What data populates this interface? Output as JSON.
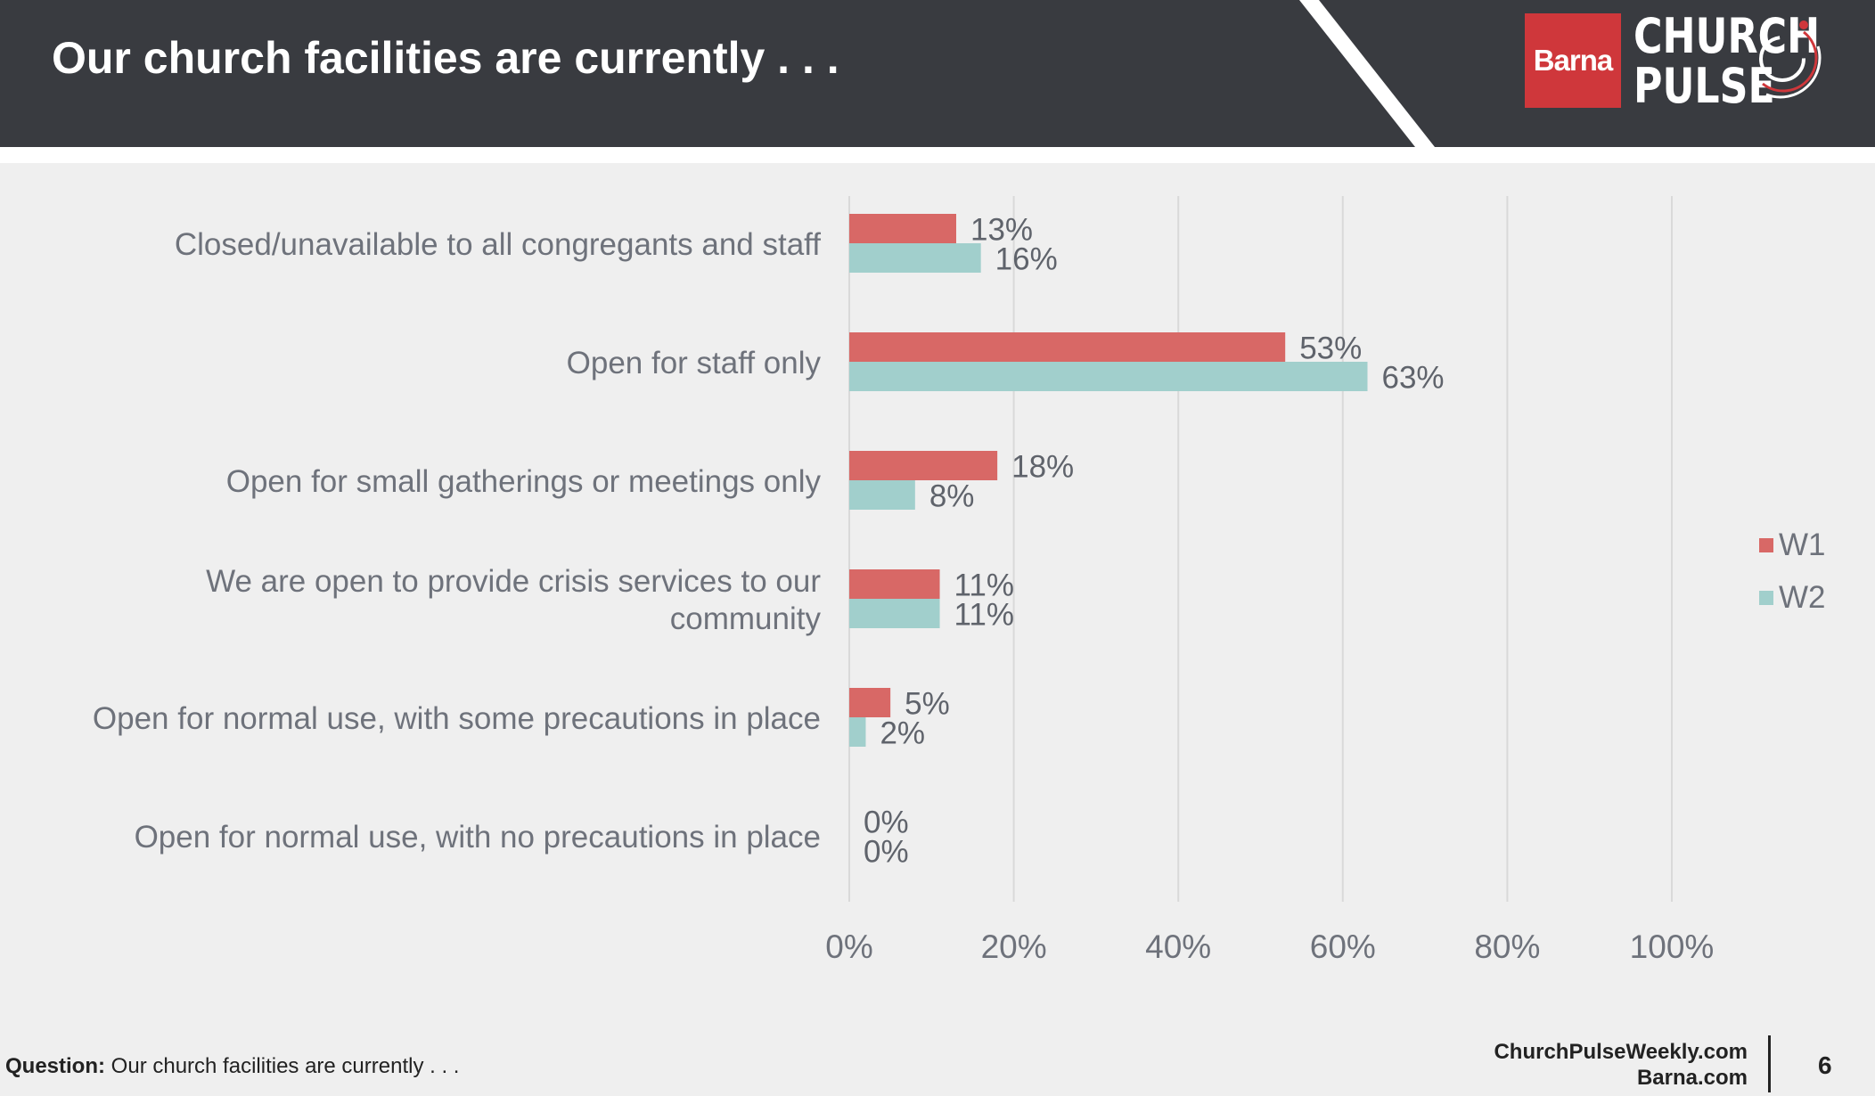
{
  "header": {
    "title": "Our church facilities are currently . . .",
    "logo": {
      "brand": "Barna",
      "word_line_1": "CHURCH",
      "word_line_2": "PULSE",
      "brand_color": "#cf373b",
      "mark_icon": "pulse-circle-icon"
    }
  },
  "colors": {
    "header_bg": "#393b40",
    "w1": "#d86866",
    "w2": "#a1cfcc",
    "text": "#6e727b"
  },
  "chart_data": {
    "type": "bar",
    "orientation": "horizontal",
    "categories": [
      "Closed/unavailable to all congregants and staff",
      "Open for staff only",
      "Open for small gatherings or meetings only",
      "We are open to provide crisis services to our community",
      "Open for normal use, with some precautions in place",
      "Open for normal use, with no precautions in place"
    ],
    "category_lines": [
      [
        "Closed/unavailable to all congregants and staff"
      ],
      [
        "Open for staff only"
      ],
      [
        "Open for small gatherings or meetings only"
      ],
      [
        "We are open to provide crisis services to our",
        "community"
      ],
      [
        "Open for normal use, with some precautions in place"
      ],
      [
        "Open for normal use, with no precautions in place"
      ]
    ],
    "series": [
      {
        "name": "W1",
        "values": [
          13,
          53,
          18,
          11,
          5,
          0
        ],
        "labels": [
          "13%",
          "53%",
          "18%",
          "11%",
          "5%",
          "0%"
        ]
      },
      {
        "name": "W2",
        "values": [
          16,
          63,
          8,
          11,
          2,
          0
        ],
        "labels": [
          "16%",
          "63%",
          "8%",
          "11%",
          "2%",
          "0%"
        ]
      }
    ],
    "xlim": [
      0,
      100
    ],
    "xticks": [
      "0%",
      "20%",
      "40%",
      "60%",
      "80%",
      "100%"
    ],
    "xtick_values": [
      0,
      20,
      40,
      60,
      80,
      100
    ],
    "grid": true,
    "legend_position": "right",
    "legend": [
      "W1",
      "W2"
    ]
  },
  "footer": {
    "question_label": "Question:",
    "question_text": "Our church facilities are currently . . .",
    "site_1": "ChurchPulseWeekly.com",
    "site_2": "Barna.com",
    "page_number": "6"
  }
}
